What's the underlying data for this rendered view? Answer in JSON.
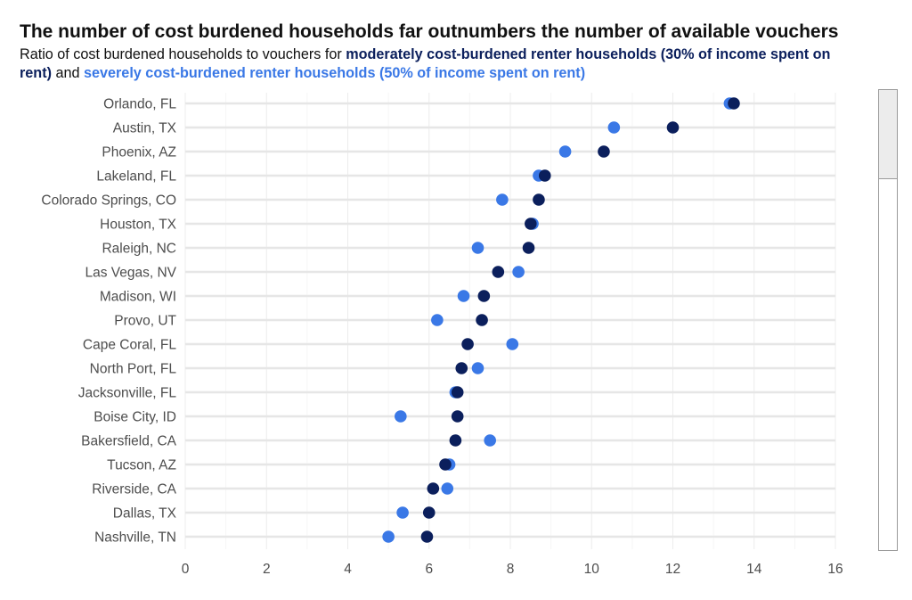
{
  "title": "The number of cost burdened households far outnumbers the number of available vouchers",
  "subtitle": {
    "prefix": "Ratio of cost burdened households to vouchers for ",
    "moderate": "moderately cost-burdened renter households (30% of income spent on rent)",
    "joiner": " and ",
    "severe": "severely cost-burdened renter households (50% of income spent on rent)"
  },
  "colors": {
    "moderate": "#0b1f5c",
    "severe": "#3a78e6",
    "grid": "#e6e6e6"
  },
  "chart_data": {
    "type": "scatter",
    "orientation": "horizontal-dot-plot",
    "categories": [
      "Orlando, FL",
      "Austin, TX",
      "Phoenix, AZ",
      "Lakeland, FL",
      "Colorado Springs, CO",
      "Houston, TX",
      "Raleigh, NC",
      "Las Vegas, NV",
      "Madison, WI",
      "Provo, UT",
      "Cape Coral, FL",
      "North Port, FL",
      "Jacksonville, FL",
      "Boise City, ID",
      "Bakersfield, CA",
      "Tucson, AZ",
      "Riverside, CA",
      "Dallas, TX",
      "Nashville, TN"
    ],
    "series": [
      {
        "key": "moderate",
        "values": [
          13.5,
          12.0,
          10.3,
          8.85,
          8.7,
          8.5,
          8.45,
          7.7,
          7.35,
          7.3,
          6.95,
          6.8,
          6.7,
          6.7,
          6.65,
          6.4,
          6.1,
          6.0,
          5.95
        ]
      },
      {
        "key": "severe",
        "values": [
          13.4,
          10.55,
          9.35,
          8.7,
          7.8,
          8.55,
          7.2,
          8.2,
          6.85,
          6.2,
          8.05,
          7.2,
          6.65,
          5.3,
          7.5,
          6.5,
          6.45,
          5.35,
          5.0
        ]
      }
    ],
    "xlim": [
      0,
      16
    ],
    "xticks": [
      0,
      2,
      4,
      6,
      8,
      10,
      12,
      14,
      16
    ],
    "xlabel": "",
    "ylabel": "",
    "grid": true,
    "legend": "none"
  }
}
